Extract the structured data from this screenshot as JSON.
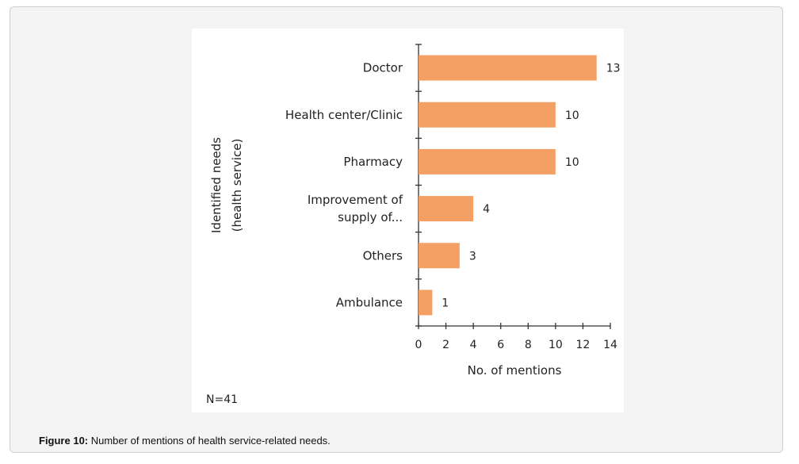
{
  "figure": {
    "caption_label": "Figure 10:",
    "caption_text": " Number of mentions of health service-related needs."
  },
  "chart_data": {
    "type": "bar",
    "orientation": "horizontal",
    "categories": [
      "Doctor",
      "Health center/Clinic",
      "Pharmacy",
      "Improvement of supply of...",
      "Others",
      "Ambulance"
    ],
    "category_lines": [
      [
        "Doctor"
      ],
      [
        "Health center/Clinic"
      ],
      [
        "Pharmacy"
      ],
      [
        "Improvement of",
        "supply of..."
      ],
      [
        "Others"
      ],
      [
        "Ambulance"
      ]
    ],
    "values": [
      13,
      10,
      10,
      4,
      3,
      1
    ],
    "xlabel": "No. of mentions",
    "ylabel_lines": [
      "Identified needs",
      "(health service)"
    ],
    "xlim": [
      0,
      14
    ],
    "xticks": [
      0,
      2,
      4,
      6,
      8,
      10,
      12,
      14
    ],
    "annotation": "N=41",
    "bar_color": "#f4a064",
    "grid": false
  }
}
